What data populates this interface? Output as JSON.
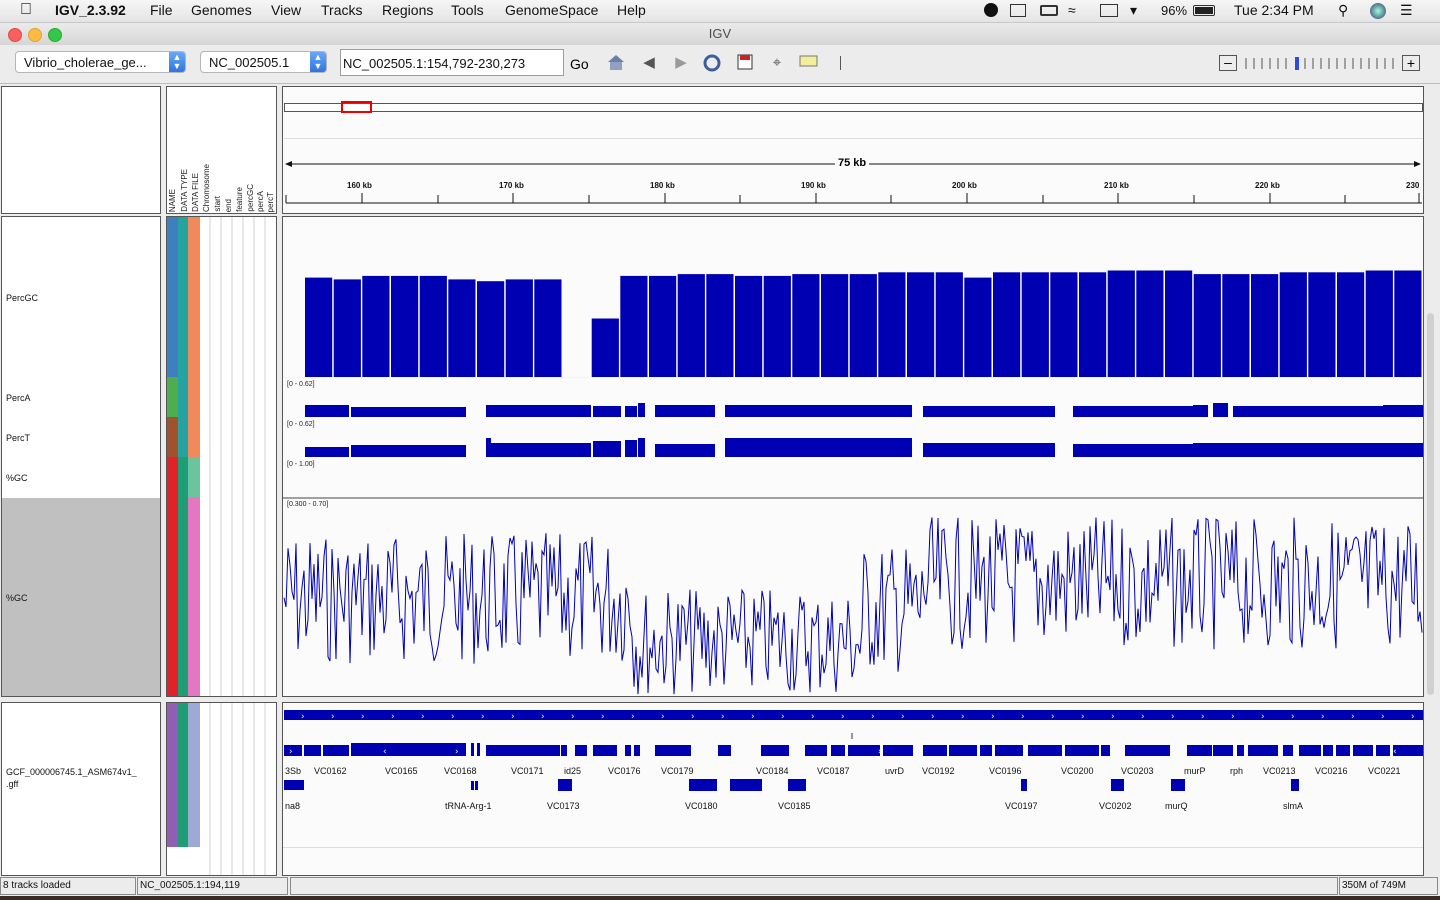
{
  "menubar": {
    "app_name": "IGV_2.3.92",
    "items": [
      "File",
      "Genomes",
      "View",
      "Tracks",
      "Regions",
      "Tools",
      "GenomeSpace",
      "Help"
    ],
    "battery": "96%",
    "clock": "Tue 2:34 PM"
  },
  "window": {
    "title": "IGV"
  },
  "toolbar": {
    "genome": "Vibrio_cholerae_ge...",
    "chromosome": "NC_002505.1",
    "locus": "NC_002505.1:154,792-230,273",
    "go_label": "Go"
  },
  "ruler": {
    "span_label": "75 kb",
    "ticks": [
      "160 kb",
      "170 kb",
      "180 kb",
      "190 kb",
      "200 kb",
      "210 kb",
      "220 kb",
      "230"
    ]
  },
  "attribute_headers": [
    "NAME",
    "DATA TYPE",
    "DATA FILE",
    "Chromosome",
    "start",
    "end",
    "feature",
    "percGC",
    "percA",
    "percT"
  ],
  "tracks": {
    "percgc": {
      "name": "PercGC",
      "range": "[0 - 0.62]"
    },
    "perca": {
      "name": "PercA",
      "range": "[0 - 0.62]"
    },
    "perct": {
      "name": "PercT",
      "range": "[0 - 1.00]"
    },
    "gc_small": {
      "name": "%GC"
    },
    "gc_large": {
      "name": "%GC",
      "range": "[0.300 - 0.70]"
    },
    "gff": {
      "name": "GCF_000006745.1_ASM674v1_",
      "name2": ".gff"
    }
  },
  "chart_data": {
    "type": "bar",
    "title": "",
    "series": [
      {
        "name": "PercGC",
        "ylim": [
          0,
          0.62
        ],
        "values": [
          0.56,
          0.55,
          0.57,
          0.57,
          0.57,
          0.55,
          0.54,
          0.55,
          0.55,
          0.0,
          0.33,
          0.57,
          0.57,
          0.58,
          0.58,
          0.57,
          0.57,
          0.58,
          0.58,
          0.58,
          0.59,
          0.59,
          0.59,
          0.56,
          0.59,
          0.59,
          0.59,
          0.59,
          0.6,
          0.6,
          0.6,
          0.58,
          0.58,
          0.58,
          0.59,
          0.59,
          0.59,
          0.6,
          0.6
        ]
      }
    ]
  },
  "genes_row1": [
    "3Sb",
    "VC0162",
    "VC0165",
    "VC0168",
    "VC0171",
    "id25",
    "VC0176",
    "VC0179",
    "VC0184",
    "VC0187",
    "uvrD",
    "VC0192",
    "VC0196",
    "VC0200",
    "VC0203",
    "murP",
    "rph",
    "VC0213",
    "VC0216",
    "VC0221"
  ],
  "genes_row2": [
    "na8",
    "tRNA-Arg-1",
    "VC0173",
    "VC0180",
    "VC0185",
    "VC0197",
    "VC0202",
    "murQ",
    "slmA"
  ],
  "status": {
    "tracks_loaded": "8 tracks loaded",
    "position": "NC_002505.1:194,119",
    "memory": "350M of 749M"
  }
}
